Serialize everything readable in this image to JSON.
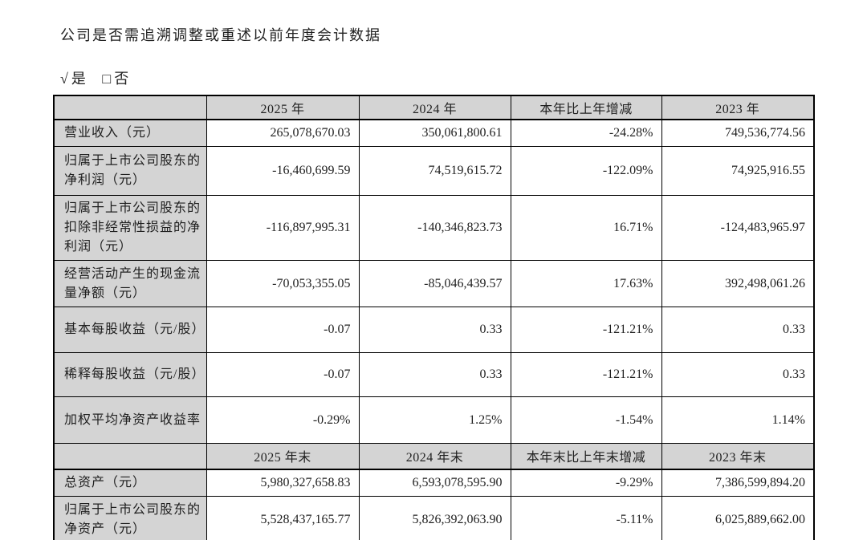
{
  "page": {
    "question": "公司是否需追溯调整或重述以前年度会计数据",
    "answer": {
      "yes_mark": "√",
      "yes_label": "是",
      "no_mark": "□",
      "no_label": "否"
    }
  },
  "table": {
    "header1": [
      "",
      "2025 年",
      "2024 年",
      "本年比上年增减",
      "2023 年"
    ],
    "rows1": [
      {
        "label": "营业收入（元）",
        "values": [
          "265,078,670.03",
          "350,061,800.61",
          "-24.28%",
          "749,536,774.56"
        ]
      },
      {
        "label": "归属于上市公司股东的净利润（元）",
        "values": [
          "-16,460,699.59",
          "74,519,615.72",
          "-122.09%",
          "74,925,916.55"
        ]
      },
      {
        "label": "归属于上市公司股东的扣除非经常性损益的净利润（元）",
        "values": [
          "-116,897,995.31",
          "-140,346,823.73",
          "16.71%",
          "-124,483,965.97"
        ]
      },
      {
        "label": "经营活动产生的现金流量净额（元）",
        "values": [
          "-70,053,355.05",
          "-85,046,439.57",
          "17.63%",
          "392,498,061.26"
        ]
      },
      {
        "label": "基本每股收益（元/股）",
        "values": [
          "-0.07",
          "0.33",
          "-121.21%",
          "0.33"
        ]
      },
      {
        "label": "稀释每股收益（元/股）",
        "values": [
          "-0.07",
          "0.33",
          "-121.21%",
          "0.33"
        ]
      },
      {
        "label": "加权平均净资产收益率",
        "values": [
          "-0.29%",
          "1.25%",
          "-1.54%",
          "1.14%"
        ]
      }
    ],
    "header2": [
      "",
      "2025 年末",
      "2024 年末",
      "本年末比上年末增减",
      "2023 年末"
    ],
    "rows2": [
      {
        "label": "总资产（元）",
        "values": [
          "5,980,327,658.83",
          "6,593,078,595.90",
          "-9.29%",
          "7,386,599,894.20"
        ]
      },
      {
        "label": "归属于上市公司股东的净资产（元）",
        "values": [
          "5,528,437,165.77",
          "5,826,392,063.90",
          "-5.11%",
          "6,025,889,662.00"
        ]
      }
    ]
  },
  "colors": {
    "header_bg": "#d4d4d4",
    "border": "#000000",
    "text": "#1f1f1f",
    "page_bg": "#ffffff"
  }
}
